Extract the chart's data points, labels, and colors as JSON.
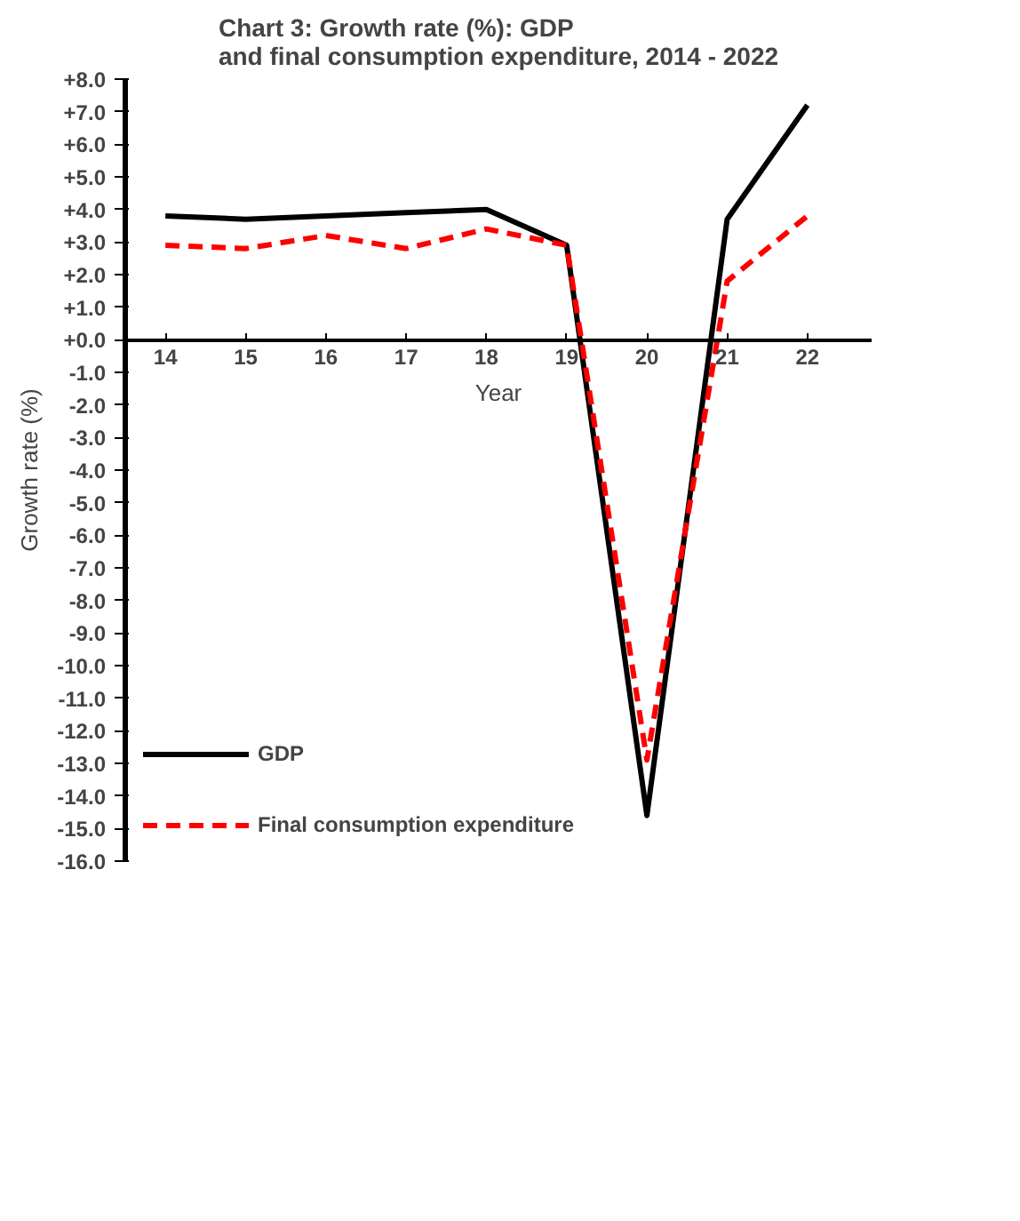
{
  "chart_data": {
    "type": "line",
    "title": "Chart 3: Growth rate (%): GDP and final consumption expenditure, 2014 - 2022",
    "categories": [
      "14",
      "15",
      "16",
      "17",
      "18",
      "19",
      "20",
      "21",
      "22"
    ],
    "series": [
      {
        "name": "GDP",
        "color": "#000000",
        "line_style": "solid",
        "values": [
          3.8,
          3.7,
          3.8,
          3.9,
          4.0,
          2.9,
          -14.6,
          3.7,
          7.2
        ]
      },
      {
        "name": "Final consumption expenditure",
        "color": "#ff0000",
        "line_style": "dashed",
        "values": [
          2.9,
          2.8,
          3.2,
          2.8,
          3.4,
          2.9,
          -12.9,
          1.8,
          3.8
        ]
      }
    ],
    "xlabel": "Year",
    "ylabel": "Growth rate (%)",
    "ylim": [
      -16,
      8
    ],
    "yticks": [
      {
        "value": 8,
        "label": "+8.0"
      },
      {
        "value": 7,
        "label": "+7.0"
      },
      {
        "value": 6,
        "label": "+6.0"
      },
      {
        "value": 5,
        "label": "+5.0"
      },
      {
        "value": 4,
        "label": "+4.0"
      },
      {
        "value": 3,
        "label": "+3.0"
      },
      {
        "value": 2,
        "label": "+2.0"
      },
      {
        "value": 1,
        "label": "+1.0"
      },
      {
        "value": 0,
        "label": "+0.0"
      },
      {
        "value": -1,
        "label": "-1.0"
      },
      {
        "value": -2,
        "label": "-2.0"
      },
      {
        "value": -3,
        "label": "-3.0"
      },
      {
        "value": -4,
        "label": "-4.0"
      },
      {
        "value": -5,
        "label": "-5.0"
      },
      {
        "value": -6,
        "label": "-6.0"
      },
      {
        "value": -7,
        "label": "-7.0"
      },
      {
        "value": -8,
        "label": "-8.0"
      },
      {
        "value": -9,
        "label": "-9.0"
      },
      {
        "value": -10,
        "label": "-10.0"
      },
      {
        "value": -11,
        "label": "-11.0"
      },
      {
        "value": -12,
        "label": "-12.0"
      },
      {
        "value": -13,
        "label": "-13.0"
      },
      {
        "value": -14,
        "label": "-14.0"
      },
      {
        "value": -15,
        "label": "-15.0"
      },
      {
        "value": -16,
        "label": "-16.0"
      }
    ],
    "grid": false,
    "legend": "bottom left",
    "marker": "none"
  }
}
